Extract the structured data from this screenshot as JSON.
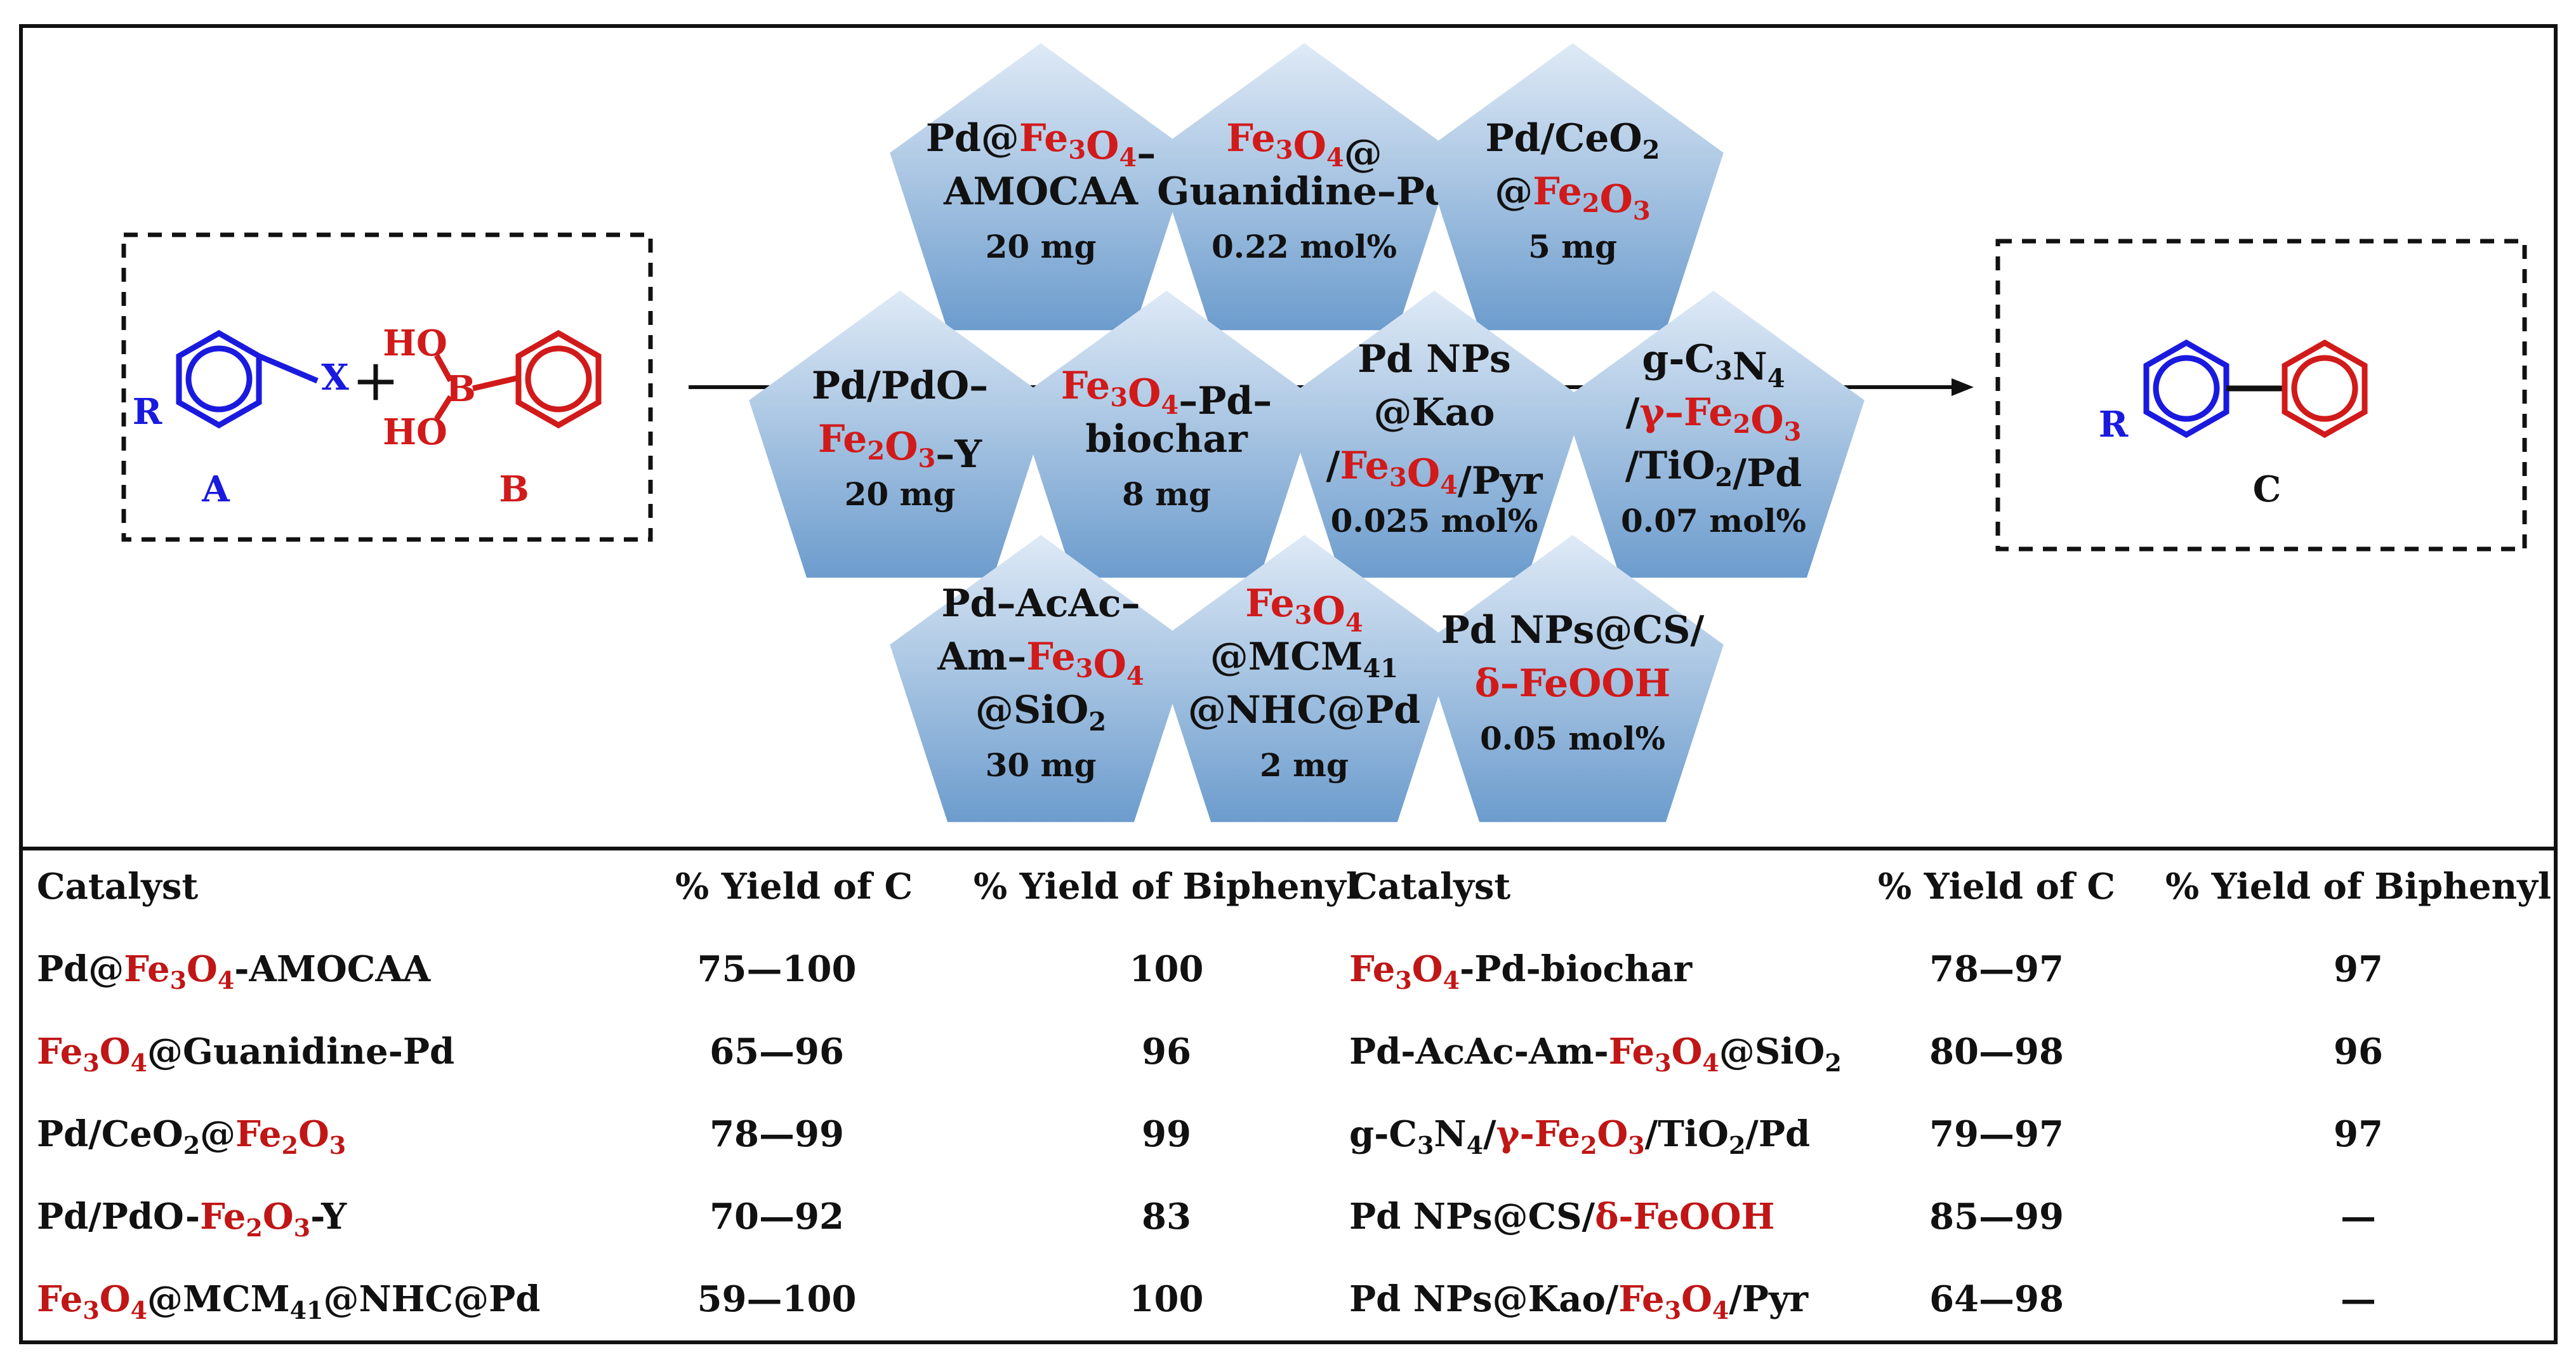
{
  "colors": {
    "red": "#d11a1a",
    "blue": "#1a1adf",
    "pentagon_top": "#d8e8f6",
    "pentagon_bottom": "#6f9fd0"
  },
  "scheme": {
    "reactant_a_label": "A",
    "reactant_b_label": "B",
    "product_label": "C",
    "substituent_r": "R",
    "leaving_group_x": "X",
    "plus_sign": "+",
    "boron": "B",
    "ho_top": "HO",
    "ho_bottom": "HO"
  },
  "pentagons": [
    {
      "lines": [
        "Pd@Fe3O4–",
        "AMOCAA",
        "20 mg"
      ]
    },
    {
      "lines": [
        "Fe3O4@",
        "Guanidine–Pd",
        "0.22 mol%"
      ]
    },
    {
      "lines": [
        "Pd/CeO2",
        "@Fe2O3",
        "5 mg"
      ]
    },
    {
      "lines": [
        "Pd/PdO–",
        "Fe2O3–Y",
        "20 mg"
      ]
    },
    {
      "lines": [
        "Fe3O4–Pd–",
        "biochar",
        "8 mg"
      ]
    },
    {
      "lines": [
        "Pd NPs",
        "@Kao",
        "/Fe3O4/Pyr",
        "0.025 mol%"
      ]
    },
    {
      "lines": [
        "g-C3N4",
        "/γ–Fe2O3",
        "/TiO2/Pd",
        "0.07 mol%"
      ]
    },
    {
      "lines": [
        "Pd–AcAc–",
        "Am–Fe3O4",
        "@SiO2",
        "30 mg"
      ]
    },
    {
      "lines": [
        "Fe3O4",
        "@MCM41",
        "@NHC@Pd",
        "2 mg"
      ]
    },
    {
      "lines": [
        "Pd NPs@CS/",
        "δ–FeOOH",
        "0.05 mol%"
      ]
    }
  ],
  "table": {
    "headers": [
      "Catalyst",
      "% Yield of C",
      "% Yield of Biphenyl",
      "Catalyst",
      "% Yield of C",
      "% Yield of Biphenyl"
    ],
    "rows": [
      {
        "catalyst_left": "Pd@Fe3O4-AMOCAA",
        "yield_c_left": "75—100",
        "biphenyl_left": "100",
        "catalyst_right": "Fe3O4-Pd-biochar",
        "yield_c_right": "78—97",
        "biphenyl_right": "97"
      },
      {
        "catalyst_left": "Fe3O4@Guanidine-Pd",
        "yield_c_left": "65—96",
        "biphenyl_left": "96",
        "catalyst_right": "Pd-AcAc-Am-Fe3O4@SiO2",
        "yield_c_right": "80—98",
        "biphenyl_right": "96"
      },
      {
        "catalyst_left": "Pd/CeO2@Fe2O3",
        "yield_c_left": "78—99",
        "biphenyl_left": "99",
        "catalyst_right": "g-C3N4/γ-Fe2O3/TiO2/Pd",
        "yield_c_right": "79—97",
        "biphenyl_right": "97"
      },
      {
        "catalyst_left": "Pd/PdO-Fe2O3-Y",
        "yield_c_left": "70—92",
        "biphenyl_left": "83",
        "catalyst_right": "Pd NPs@CS/δ-FeOOH",
        "yield_c_right": "85—99",
        "biphenyl_right": "—"
      },
      {
        "catalyst_left": "Fe3O4@MCM41@NHC@Pd",
        "yield_c_left": "59—100",
        "biphenyl_left": "100",
        "catalyst_right": "Pd NPs@Kao/Fe3O4/Pyr",
        "yield_c_right": "64—98",
        "biphenyl_right": "—"
      }
    ]
  }
}
